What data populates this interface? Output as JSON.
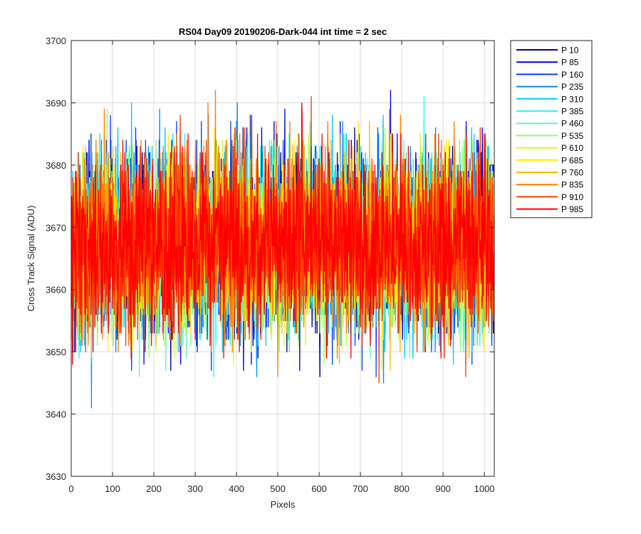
{
  "chart_data": {
    "type": "line",
    "title": "RS04 Day09 20190206-Dark-044 int time = 2 sec",
    "xlabel": "Pixels",
    "ylabel": "Cross Track Signal (ADU)",
    "xlim": [
      0,
      1024
    ],
    "ylim": [
      3630,
      3700
    ],
    "xticks": [
      0,
      100,
      200,
      300,
      400,
      500,
      600,
      700,
      800,
      900,
      1000
    ],
    "yticks": [
      3630,
      3640,
      3650,
      3660,
      3670,
      3680,
      3690,
      3700
    ],
    "grid": true,
    "legend_position": "outside-top-right",
    "noise_model": {
      "mean": 3667.5,
      "std": 7,
      "min": 3639,
      "max": 3700,
      "points_per_series": 1024
    },
    "series": [
      {
        "name": "P 10",
        "color": "#00008f"
      },
      {
        "name": "P 85",
        "color": "#0000ea"
      },
      {
        "name": "P 160",
        "color": "#0040ff"
      },
      {
        "name": "P 235",
        "color": "#008aff"
      },
      {
        "name": "P 310",
        "color": "#00c8ff"
      },
      {
        "name": "P 385",
        "color": "#1afff0"
      },
      {
        "name": "P 460",
        "color": "#5bffb0"
      },
      {
        "name": "P 535",
        "color": "#8fff70"
      },
      {
        "name": "P 610",
        "color": "#c8ff30"
      },
      {
        "name": "P 685",
        "color": "#ffee00"
      },
      {
        "name": "P 760",
        "color": "#ffb800"
      },
      {
        "name": "P 835",
        "color": "#ff7a00"
      },
      {
        "name": "P 910",
        "color": "#ff3a00"
      },
      {
        "name": "P 985",
        "color": "#ff0000"
      }
    ]
  }
}
